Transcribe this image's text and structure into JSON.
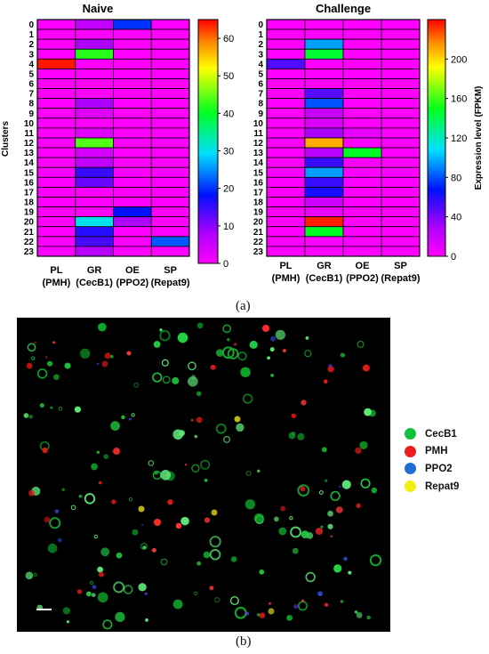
{
  "figure": {
    "label_a": "(a)",
    "label_b": "(b)"
  },
  "chart_data": [
    {
      "type": "heatmap",
      "title": "Naive",
      "ylabel": "Clusters",
      "rows": [
        "0",
        "1",
        "2",
        "3",
        "4",
        "5",
        "6",
        "7",
        "8",
        "9",
        "10",
        "11",
        "12",
        "13",
        "14",
        "15",
        "16",
        "17",
        "18",
        "19",
        "20",
        "21",
        "22",
        "23"
      ],
      "columns": [
        {
          "line1": "PL",
          "line2": "(PMH)"
        },
        {
          "line1": "GR",
          "line2": "(CecB1)"
        },
        {
          "line1": "OE",
          "line2": "(PPO2)"
        },
        {
          "line1": "SP",
          "line2": "(Repat9)"
        }
      ],
      "values": [
        [
          0,
          6,
          20,
          0
        ],
        [
          0,
          0,
          0,
          0
        ],
        [
          0,
          8,
          0,
          0
        ],
        [
          0,
          42,
          0,
          0
        ],
        [
          64,
          0,
          0,
          0
        ],
        [
          0,
          0,
          0,
          0
        ],
        [
          0,
          0,
          0,
          0
        ],
        [
          0,
          0,
          0,
          0
        ],
        [
          0,
          8,
          0,
          0
        ],
        [
          0,
          3,
          0,
          0
        ],
        [
          0,
          0,
          0,
          0
        ],
        [
          0,
          3,
          0,
          0
        ],
        [
          0,
          44,
          0,
          0
        ],
        [
          0,
          4,
          0,
          0
        ],
        [
          0,
          6,
          0,
          0
        ],
        [
          0,
          15,
          0,
          0
        ],
        [
          0,
          12,
          0,
          0
        ],
        [
          0,
          0,
          0,
          0
        ],
        [
          0,
          0,
          0,
          0
        ],
        [
          0,
          0,
          18,
          0
        ],
        [
          0,
          30,
          8,
          0
        ],
        [
          0,
          16,
          0,
          0
        ],
        [
          0,
          14,
          0,
          22
        ],
        [
          0,
          7,
          0,
          0
        ]
      ],
      "colorbar": {
        "min": 0,
        "max": 65,
        "ticks": [
          0,
          10,
          20,
          30,
          40,
          50,
          60
        ],
        "label": ""
      }
    },
    {
      "type": "heatmap",
      "title": "Challenge",
      "ylabel": "",
      "rows": [
        "0",
        "1",
        "2",
        "3",
        "4",
        "5",
        "6",
        "7",
        "8",
        "9",
        "10",
        "11",
        "12",
        "13",
        "14",
        "15",
        "16",
        "17",
        "18",
        "19",
        "20",
        "21",
        "22",
        "23"
      ],
      "columns": [
        {
          "line1": "PL",
          "line2": "(PMH)"
        },
        {
          "line1": "GR",
          "line2": "(CecB1)"
        },
        {
          "line1": "OE",
          "line2": "(PPO2)"
        },
        {
          "line1": "SP",
          "line2": "(Repat9)"
        }
      ],
      "values": [
        [
          0,
          0,
          0,
          0
        ],
        [
          0,
          0,
          0,
          0
        ],
        [
          0,
          95,
          0,
          0
        ],
        [
          0,
          145,
          0,
          0
        ],
        [
          50,
          0,
          0,
          0
        ],
        [
          0,
          0,
          0,
          0
        ],
        [
          0,
          0,
          0,
          0
        ],
        [
          0,
          48,
          0,
          0
        ],
        [
          0,
          80,
          0,
          0
        ],
        [
          0,
          20,
          0,
          0
        ],
        [
          0,
          12,
          0,
          0
        ],
        [
          0,
          30,
          8,
          0
        ],
        [
          0,
          210,
          0,
          0
        ],
        [
          0,
          25,
          148,
          0
        ],
        [
          0,
          55,
          0,
          0
        ],
        [
          0,
          95,
          0,
          0
        ],
        [
          0,
          55,
          0,
          0
        ],
        [
          0,
          62,
          0,
          0
        ],
        [
          0,
          18,
          0,
          0
        ],
        [
          0,
          8,
          0,
          0
        ],
        [
          0,
          235,
          0,
          0
        ],
        [
          0,
          148,
          0,
          0
        ],
        [
          0,
          0,
          0,
          0
        ],
        [
          0,
          0,
          0,
          0
        ]
      ],
      "colorbar": {
        "min": 0,
        "max": 240,
        "ticks": [
          0,
          40,
          80,
          120,
          160,
          200
        ],
        "label": "Expression level (FPKM)"
      }
    }
  ],
  "micrograph": {
    "legend": [
      {
        "label": "CecB1",
        "color": "#12c23a"
      },
      {
        "label": "PMH",
        "color": "#ee1c1c"
      },
      {
        "label": "PPO2",
        "color": "#1f6ed4"
      },
      {
        "label": "Repat9",
        "color": "#f2ee12"
      }
    ]
  }
}
